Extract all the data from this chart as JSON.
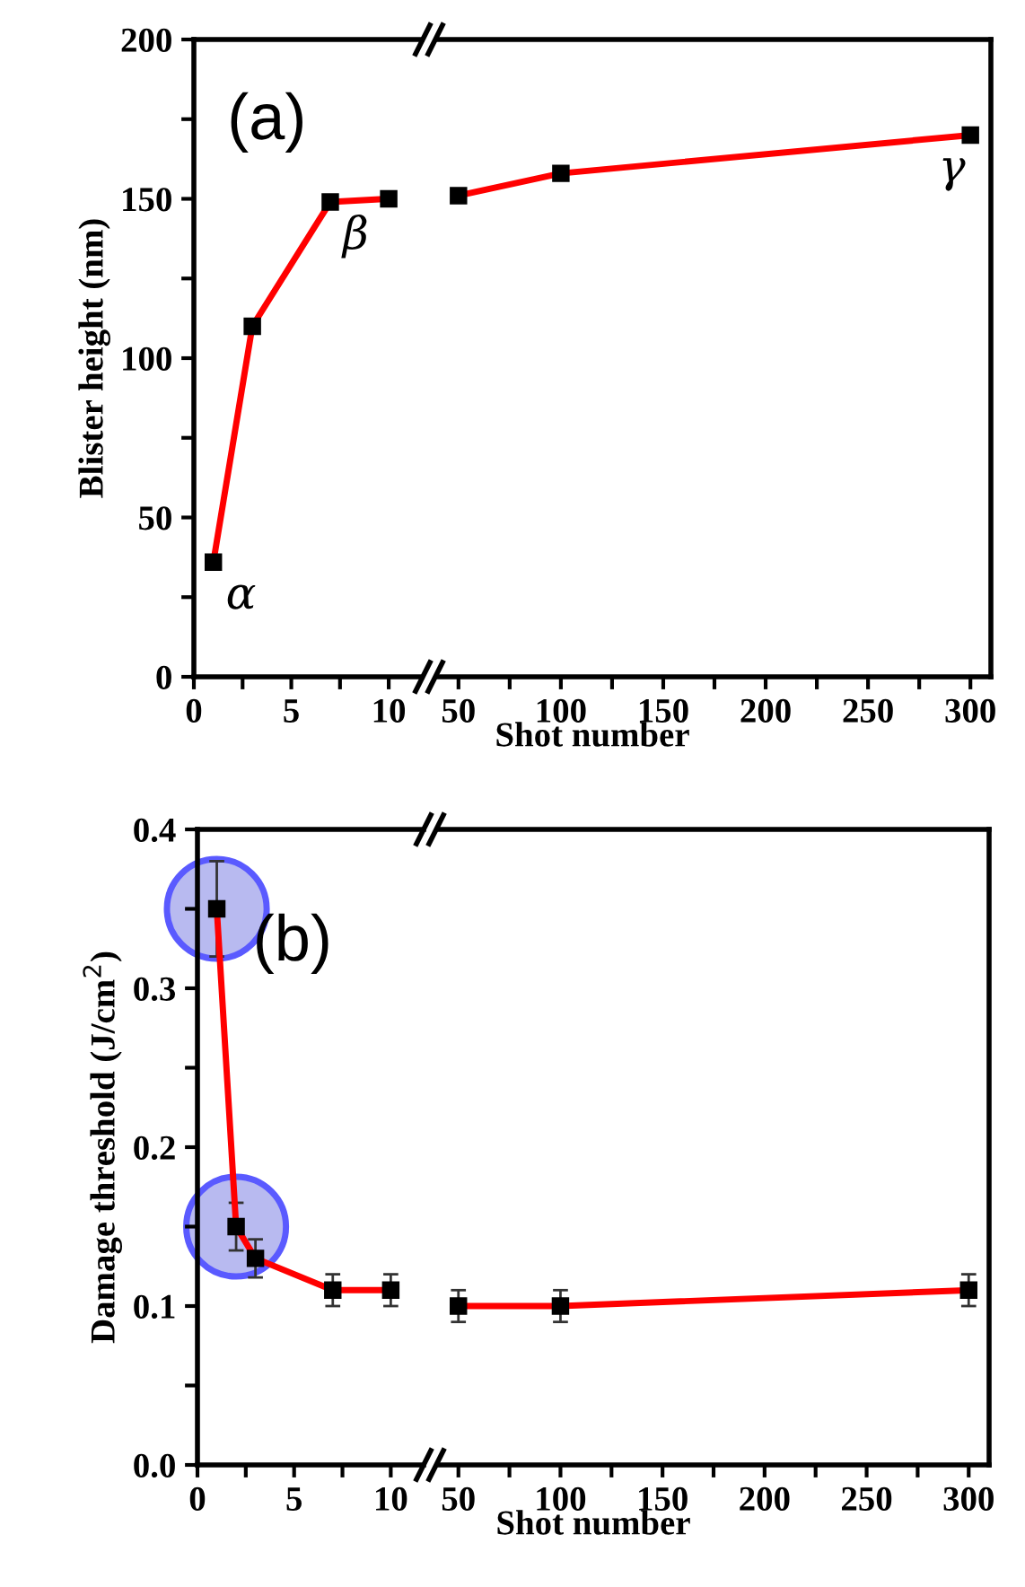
{
  "chart_data": [
    {
      "type": "line",
      "ylabel": "Blister height (nm)",
      "xlabel": "Shot number",
      "x": [
        1,
        3,
        7,
        10
      ],
      "series": [
        {
          "color": "#ff0000",
          "values": [
            36,
            110,
            149,
            150
          ]
        }
      ],
      "xlim": [
        0,
        11.7
      ],
      "xticks": [
        0,
        {
          "value": 2.5,
          "label": null
        },
        5,
        {
          "value": 7.5,
          "label": null
        },
        10
      ],
      "ylim": [
        0,
        200
      ],
      "yticks": [
        0,
        {
          "value": 25,
          "label": null
        },
        50,
        {
          "value": 75,
          "label": null
        },
        100,
        {
          "value": 125,
          "label": null
        },
        150,
        {
          "value": 175,
          "label": null
        },
        200
      ],
      "marker": "square",
      "line_style": "solid",
      "grid": false,
      "legend": false,
      "annotations": [
        "(a)",
        {
          "text": "α",
          "x": 1,
          "y": 36
        },
        {
          "text": "β",
          "x": 7,
          "y": 149
        }
      ]
    },
    {
      "type": "line",
      "x": [
        50,
        100,
        300
      ],
      "series": [
        {
          "color": "#ff0000",
          "values": [
            151,
            158,
            170
          ]
        }
      ],
      "xlim": [
        40,
        310
      ],
      "xticks": [
        50,
        {
          "value": 75,
          "label": null
        },
        100,
        {
          "value": 125,
          "label": null
        },
        150,
        {
          "value": 175,
          "label": null
        },
        200,
        {
          "value": 225,
          "label": null
        },
        250,
        {
          "value": 275,
          "label": null
        },
        300
      ],
      "ylim": [
        0,
        200
      ],
      "tick_labels": "x",
      "marker": "square",
      "line_style": "solid",
      "grid": false,
      "legend": false,
      "annotations": [
        {
          "text": "γ",
          "x": 300,
          "y": 170
        }
      ]
    },
    {
      "type": "line",
      "ylabel": "Damage threshold (J/cm$^{2}$)",
      "xlabel": "Shot number",
      "x": [
        1,
        2,
        3,
        7,
        10
      ],
      "series": [
        {
          "color": "#ff0000",
          "values": [
            0.35,
            0.15,
            0.13,
            0.11,
            0.11
          ],
          "errors": [
            0.03,
            0.015,
            0.012,
            0.01,
            0.01
          ]
        }
      ],
      "xlim": [
        0,
        11.7
      ],
      "xticks": [
        0,
        {
          "value": 2.5,
          "label": null
        },
        5,
        {
          "value": 7.5,
          "label": null
        },
        10
      ],
      "ylim": [
        0,
        0.4
      ],
      "yticks": [
        {
          "value": 0,
          "label": "0.0"
        },
        {
          "value": 0.05,
          "label": null
        },
        0.1,
        {
          "value": 0.15,
          "label": null
        },
        0.2,
        {
          "value": 0.25,
          "label": null
        },
        0.3,
        {
          "value": 0.35,
          "label": null
        },
        0.4
      ],
      "marker": "square",
      "line_style": "solid",
      "grid": false,
      "legend": false,
      "annotations": [
        "(b)"
      ]
    },
    {
      "type": "line",
      "x": [
        50,
        100,
        300
      ],
      "series": [
        {
          "color": "#ff0000",
          "values": [
            0.1,
            0.1,
            0.11
          ],
          "errors": [
            0.01,
            0.01,
            0.01
          ]
        }
      ],
      "xlim": [
        40,
        310
      ],
      "xticks": [
        50,
        {
          "value": 75,
          "label": null
        },
        100,
        {
          "value": 125,
          "label": null
        },
        150,
        {
          "value": 175,
          "label": null
        },
        200,
        {
          "value": 225,
          "label": null
        },
        250,
        {
          "value": 275,
          "label": null
        },
        300
      ],
      "ylim": [
        0,
        0.4
      ],
      "tick_labels": "x",
      "marker": "square",
      "line_style": "solid",
      "grid": false,
      "legend": false
    }
  ]
}
